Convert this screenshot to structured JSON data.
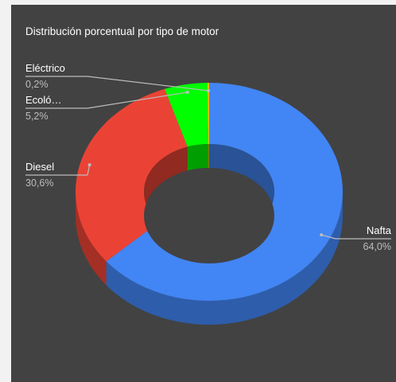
{
  "chart_data": {
    "type": "pie",
    "title": "Distribución porcentual por tipo de motor",
    "donut": true,
    "three_d": true,
    "slices": [
      {
        "label": "Nafta",
        "value": 64.0,
        "value_label": "64,0%",
        "color": "#4285f4"
      },
      {
        "label": "Diesel",
        "value": 30.6,
        "value_label": "30,6%",
        "color": "#ea4335"
      },
      {
        "label": "Ecoló…",
        "value": 5.2,
        "value_label": "5,2%",
        "color": "#00ff00"
      },
      {
        "label": "Eléctrico",
        "value": 0.2,
        "value_label": "0,2%",
        "color": "#fbbc04"
      }
    ],
    "background": "#424242"
  }
}
